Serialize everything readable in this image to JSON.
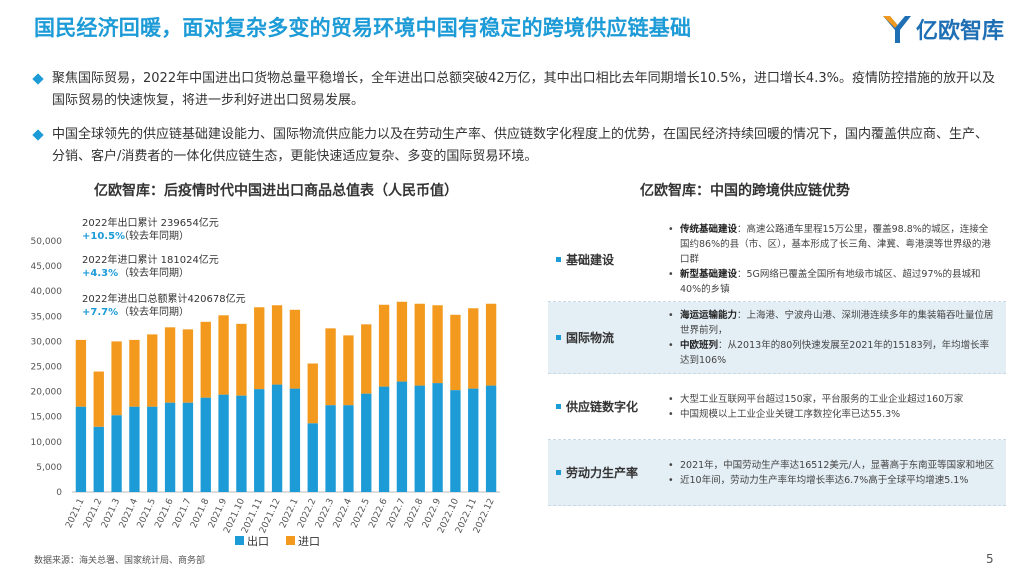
{
  "header": {
    "title": "国民经济回暖，面对复杂多变的贸易环境中国有稳定的跨境供应链基础",
    "logo_text": "亿欧智库"
  },
  "bullets": [
    "聚焦国际贸易，2022年中国进出口货物总量平稳增长，全年进出口总额突破42万亿，其中出口相比去年同期增长10.5%，进口增长4.3%。疫情防控措施的放开以及国际贸易的快速恢复，将进一步利好进出口贸易发展。",
    "中国全球领先的供应链基础建设能力、国际物流供应能力以及在劳动生产率、供应链数字化程度上的优势，在国民经济持续回暖的情况下，国内覆盖供应商、生产、分销、客户/消费者的一体化供应链生态，更能快速适应复杂、多变的国际贸易环境。"
  ],
  "chart_title": "亿欧智库：后疫情时代中国进出口商品总值表（人民币值）",
  "chart_data": {
    "type": "bar",
    "stacked": true,
    "title": "亿欧智库：后疫情时代中国进出口商品总值表（人民币值）",
    "categories": [
      "2021.1",
      "2021.2",
      "2021.3",
      "2021.4",
      "2021.5",
      "2021.6",
      "2021.7",
      "2021.8",
      "2021.9",
      "2021.10",
      "2021.11",
      "2021.12",
      "2022.1",
      "2022.2",
      "2022.3",
      "2022.4",
      "2022.5",
      "2022.6",
      "2022.7",
      "2022.8",
      "2022.9",
      "2022.10",
      "2022.11",
      "2022.12"
    ],
    "series": [
      {
        "name": "出口",
        "color": "#1d9bd7",
        "values": [
          17000,
          13000,
          15300,
          17000,
          17000,
          17800,
          17800,
          18800,
          19400,
          19200,
          20500,
          21400,
          20600,
          13700,
          17300,
          17300,
          19600,
          21000,
          22000,
          21200,
          21700,
          20300,
          20600,
          21200
        ]
      },
      {
        "name": "进口",
        "color": "#f39a1e",
        "values": [
          13300,
          11000,
          14700,
          13300,
          14400,
          15000,
          14600,
          15100,
          15800,
          14300,
          16300,
          15800,
          15700,
          11900,
          15300,
          13900,
          13800,
          16300,
          15900,
          16300,
          15500,
          15000,
          16000,
          16300
        ]
      }
    ],
    "ylim": [
      0,
      50000
    ],
    "yticks": [
      "0",
      "5,000",
      "10,000",
      "15,000",
      "20,000",
      "25,000",
      "30,000",
      "35,000",
      "40,000",
      "45,000",
      "50,000"
    ],
    "legend_position": "bottom",
    "annotations": [
      {
        "line1": "2022年出口累计 239654亿元",
        "pct": "+10.5%",
        "note": "（较去年同期）"
      },
      {
        "line1": "2022年进口累计 181024亿元",
        "pct": "+4.3%",
        "note": "（较去年同期）"
      },
      {
        "line1": "2022年进出口总额累计420678亿元",
        "pct": "+7.7%",
        "note": "（较去年同期）"
      }
    ]
  },
  "table_title": "亿欧智库：中国的跨境供应链优势",
  "advantages": [
    {
      "label": "基础建设",
      "shaded": false,
      "items": [
        {
          "bold": "传统基础建设",
          "text": "：高速公路通车里程15万公里，覆盖98.8%的城区，连接全国约86%的县（市、区），基本形成了长三角、津冀、粤港澳等世界级的港口群"
        },
        {
          "bold": "新型基础建设",
          "text": "：5G网络已覆盖全国所有地级市城区、超过97%的县城和40%的乡镇"
        }
      ]
    },
    {
      "label": "国际物流",
      "shaded": true,
      "items": [
        {
          "bold": "海运运输能力",
          "text": "：上海港、宁波舟山港、深圳港连续多年的集装箱吞吐量位居世界前列，"
        },
        {
          "bold": "中欧班列",
          "text": "：从2013年的80列快速发展至2021年的15183列，年均增长率达到106%"
        }
      ]
    },
    {
      "label": "供应链数字化",
      "shaded": false,
      "items": [
        {
          "bold": "",
          "text": "大型工业互联网平台超过150家，平台服务的工业企业超过160万家"
        },
        {
          "bold": "",
          "text": "中国规模以上工业企业关键工序数控化率已达55.3%"
        }
      ]
    },
    {
      "label": "劳动力生产率",
      "shaded": true,
      "items": [
        {
          "bold": "",
          "text": "2021年，中国劳动生产率达16512美元/人，显著高于东南亚等国家和地区"
        },
        {
          "bold": "",
          "text": "近10年间，劳动力生产率年均增长率达6.7%高于全球平均增速5.1%"
        }
      ]
    }
  ],
  "footer": {
    "source": "数据来源：海关总署、国家统计局、商务部",
    "page": "5"
  }
}
